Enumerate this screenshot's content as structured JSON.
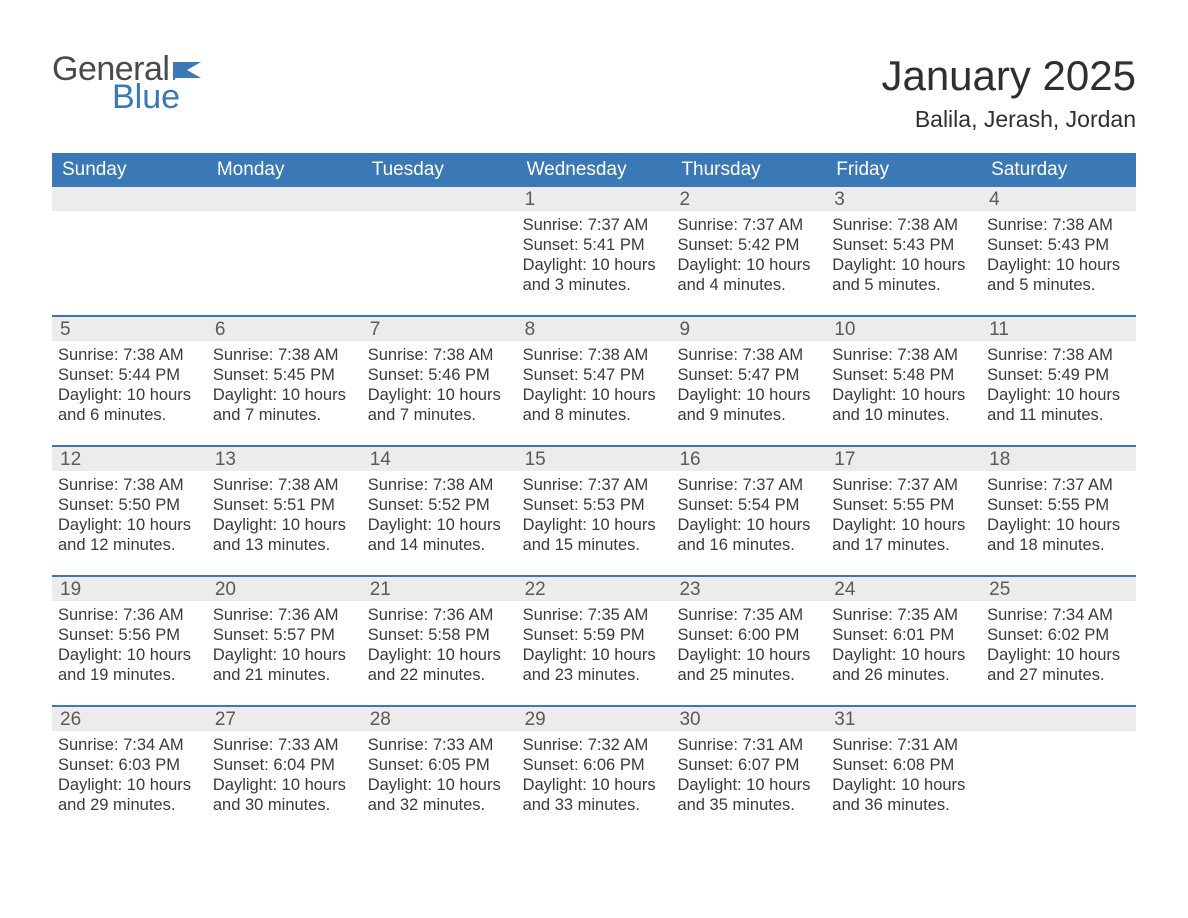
{
  "brand": {
    "line1": "General",
    "line2": "Blue",
    "accent_color": "#3a78b6"
  },
  "title": "January 2025",
  "location": "Balila, Jerash, Jordan",
  "colors": {
    "header_bg": "#3a78b6",
    "header_text": "#ffffff",
    "daynum_bg": "#ececec",
    "text": "#3a3a3a",
    "page_bg": "#ffffff"
  },
  "fonts": {
    "title_size": 42,
    "location_size": 23,
    "header_size": 19,
    "body_size": 16.5
  },
  "day_headers": [
    "Sunday",
    "Monday",
    "Tuesday",
    "Wednesday",
    "Thursday",
    "Friday",
    "Saturday"
  ],
  "weeks": [
    [
      null,
      null,
      null,
      {
        "n": "1",
        "sunrise": "7:37 AM",
        "sunset": "5:41 PM",
        "daylight": "10 hours and 3 minutes."
      },
      {
        "n": "2",
        "sunrise": "7:37 AM",
        "sunset": "5:42 PM",
        "daylight": "10 hours and 4 minutes."
      },
      {
        "n": "3",
        "sunrise": "7:38 AM",
        "sunset": "5:43 PM",
        "daylight": "10 hours and 5 minutes."
      },
      {
        "n": "4",
        "sunrise": "7:38 AM",
        "sunset": "5:43 PM",
        "daylight": "10 hours and 5 minutes."
      }
    ],
    [
      {
        "n": "5",
        "sunrise": "7:38 AM",
        "sunset": "5:44 PM",
        "daylight": "10 hours and 6 minutes."
      },
      {
        "n": "6",
        "sunrise": "7:38 AM",
        "sunset": "5:45 PM",
        "daylight": "10 hours and 7 minutes."
      },
      {
        "n": "7",
        "sunrise": "7:38 AM",
        "sunset": "5:46 PM",
        "daylight": "10 hours and 7 minutes."
      },
      {
        "n": "8",
        "sunrise": "7:38 AM",
        "sunset": "5:47 PM",
        "daylight": "10 hours and 8 minutes."
      },
      {
        "n": "9",
        "sunrise": "7:38 AM",
        "sunset": "5:47 PM",
        "daylight": "10 hours and 9 minutes."
      },
      {
        "n": "10",
        "sunrise": "7:38 AM",
        "sunset": "5:48 PM",
        "daylight": "10 hours and 10 minutes."
      },
      {
        "n": "11",
        "sunrise": "7:38 AM",
        "sunset": "5:49 PM",
        "daylight": "10 hours and 11 minutes."
      }
    ],
    [
      {
        "n": "12",
        "sunrise": "7:38 AM",
        "sunset": "5:50 PM",
        "daylight": "10 hours and 12 minutes."
      },
      {
        "n": "13",
        "sunrise": "7:38 AM",
        "sunset": "5:51 PM",
        "daylight": "10 hours and 13 minutes."
      },
      {
        "n": "14",
        "sunrise": "7:38 AM",
        "sunset": "5:52 PM",
        "daylight": "10 hours and 14 minutes."
      },
      {
        "n": "15",
        "sunrise": "7:37 AM",
        "sunset": "5:53 PM",
        "daylight": "10 hours and 15 minutes."
      },
      {
        "n": "16",
        "sunrise": "7:37 AM",
        "sunset": "5:54 PM",
        "daylight": "10 hours and 16 minutes."
      },
      {
        "n": "17",
        "sunrise": "7:37 AM",
        "sunset": "5:55 PM",
        "daylight": "10 hours and 17 minutes."
      },
      {
        "n": "18",
        "sunrise": "7:37 AM",
        "sunset": "5:55 PM",
        "daylight": "10 hours and 18 minutes."
      }
    ],
    [
      {
        "n": "19",
        "sunrise": "7:36 AM",
        "sunset": "5:56 PM",
        "daylight": "10 hours and 19 minutes."
      },
      {
        "n": "20",
        "sunrise": "7:36 AM",
        "sunset": "5:57 PM",
        "daylight": "10 hours and 21 minutes."
      },
      {
        "n": "21",
        "sunrise": "7:36 AM",
        "sunset": "5:58 PM",
        "daylight": "10 hours and 22 minutes."
      },
      {
        "n": "22",
        "sunrise": "7:35 AM",
        "sunset": "5:59 PM",
        "daylight": "10 hours and 23 minutes."
      },
      {
        "n": "23",
        "sunrise": "7:35 AM",
        "sunset": "6:00 PM",
        "daylight": "10 hours and 25 minutes."
      },
      {
        "n": "24",
        "sunrise": "7:35 AM",
        "sunset": "6:01 PM",
        "daylight": "10 hours and 26 minutes."
      },
      {
        "n": "25",
        "sunrise": "7:34 AM",
        "sunset": "6:02 PM",
        "daylight": "10 hours and 27 minutes."
      }
    ],
    [
      {
        "n": "26",
        "sunrise": "7:34 AM",
        "sunset": "6:03 PM",
        "daylight": "10 hours and 29 minutes."
      },
      {
        "n": "27",
        "sunrise": "7:33 AM",
        "sunset": "6:04 PM",
        "daylight": "10 hours and 30 minutes."
      },
      {
        "n": "28",
        "sunrise": "7:33 AM",
        "sunset": "6:05 PM",
        "daylight": "10 hours and 32 minutes."
      },
      {
        "n": "29",
        "sunrise": "7:32 AM",
        "sunset": "6:06 PM",
        "daylight": "10 hours and 33 minutes."
      },
      {
        "n": "30",
        "sunrise": "7:31 AM",
        "sunset": "6:07 PM",
        "daylight": "10 hours and 35 minutes."
      },
      {
        "n": "31",
        "sunrise": "7:31 AM",
        "sunset": "6:08 PM",
        "daylight": "10 hours and 36 minutes."
      },
      null
    ]
  ],
  "labels": {
    "sunrise": "Sunrise: ",
    "sunset": "Sunset: ",
    "daylight": "Daylight: "
  }
}
